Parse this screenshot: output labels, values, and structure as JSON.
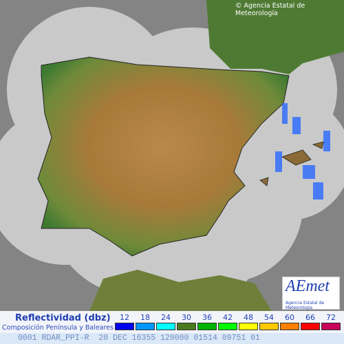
{
  "copyright": "© Agencia Estatal de Meteorología",
  "legend": {
    "title": "Reflectividad (dbz)",
    "subtitle": "Composición Península y Baleares",
    "items": [
      {
        "value": 12,
        "color": "#0000f0"
      },
      {
        "value": 18,
        "color": "#0096ff"
      },
      {
        "value": 24,
        "color": "#00ffff"
      },
      {
        "value": 30,
        "color": "#4a7a1e"
      },
      {
        "value": 36,
        "color": "#00b400"
      },
      {
        "value": 42,
        "color": "#00ff00"
      },
      {
        "value": 48,
        "color": "#ffff00"
      },
      {
        "value": 54,
        "color": "#ffc800"
      },
      {
        "value": 60,
        "color": "#ff8000"
      },
      {
        "value": 66,
        "color": "#ff0000"
      },
      {
        "value": 72,
        "color": "#c8005a"
      }
    ]
  },
  "footer": "0001 RDAR_PPI-R  20 DEC 16355 120000 01514 09751 01",
  "logo": {
    "name": "AEmet",
    "tagline": "Agencia Estatal de Meteorología"
  }
}
